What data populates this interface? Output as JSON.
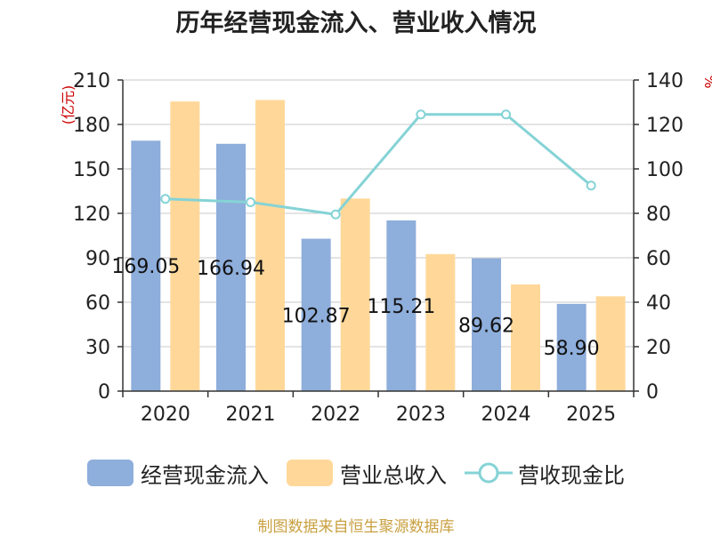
{
  "chart_data": {
    "type": "bar",
    "title": "历年经营现金流入、营业收入情况",
    "categories": [
      "2020",
      "2021",
      "2022",
      "2023",
      "2024",
      "2025"
    ],
    "series": [
      {
        "name": "经营现金流入",
        "type": "bar",
        "axis": "left",
        "color": "#8eaedb",
        "values": [
          169.05,
          166.94,
          102.87,
          115.21,
          89.62,
          58.9
        ],
        "labels": [
          "169.05",
          "166.94",
          "102.87",
          "115.21",
          "89.62",
          "58.90"
        ]
      },
      {
        "name": "营业总收入",
        "type": "bar",
        "axis": "left",
        "color": "#ffd899",
        "values": [
          195.5,
          196.5,
          130.0,
          92.5,
          72.0,
          64.0
        ]
      },
      {
        "name": "营收现金比",
        "type": "line",
        "axis": "right",
        "color": "#85d3d6",
        "values": [
          86.5,
          85.0,
          79.5,
          124.5,
          124.5,
          92.5
        ]
      }
    ],
    "y_left": {
      "label": "(亿元)",
      "ylim": [
        0,
        210
      ],
      "ticks": [
        "0",
        "30",
        "60",
        "90",
        "120",
        "150",
        "180",
        "210"
      ]
    },
    "y_right": {
      "label": "%",
      "ylim": [
        0,
        140
      ],
      "ticks": [
        "0",
        "20",
        "40",
        "60",
        "80",
        "100",
        "120",
        "140"
      ]
    },
    "grid": true,
    "legend_position": "bottom"
  },
  "source_text": "制图数据来自恒生聚源数据库"
}
